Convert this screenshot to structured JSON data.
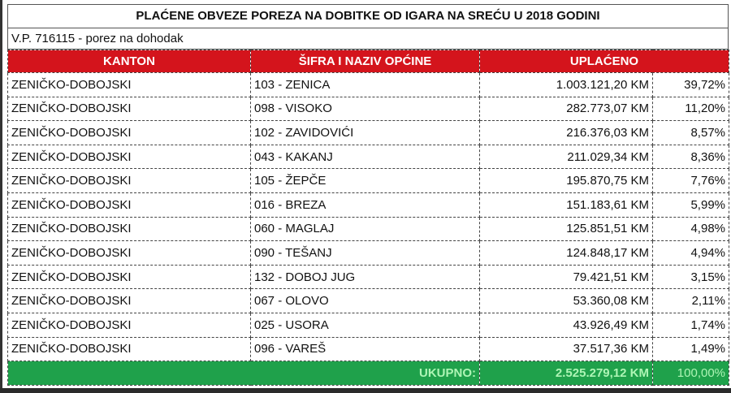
{
  "title": "PLAĆENE OBVEZE POREZA NA DOBITKE OD IGARA NA SREĆU U 2018 GODINI",
  "subtitle": "V.P. 716115 - porez na dohodak",
  "colors": {
    "header": "#d4141c",
    "total": "#1fa14b"
  },
  "headers": [
    "KANTON",
    "ŠIFRA I NAZIV OPĆINE",
    "UPLAĆENO"
  ],
  "rows": [
    {
      "kanton": "ZENIČKO-DOBOJSKI",
      "opcina": "103 - ZENICA",
      "iznos": "1.003.121,20 KM",
      "udio": "39,72%"
    },
    {
      "kanton": "ZENIČKO-DOBOJSKI",
      "opcina": "098 - VISOKO",
      "iznos": "282.773,07 KM",
      "udio": "11,20%"
    },
    {
      "kanton": "ZENIČKO-DOBOJSKI",
      "opcina": "102 - ZAVIDOVIĆI",
      "iznos": "216.376,03 KM",
      "udio": "8,57%"
    },
    {
      "kanton": "ZENIČKO-DOBOJSKI",
      "opcina": "043 - KAKANJ",
      "iznos": "211.029,34 KM",
      "udio": "8,36%"
    },
    {
      "kanton": "ZENIČKO-DOBOJSKI",
      "opcina": "105 - ŽEPČE",
      "iznos": "195.870,75 KM",
      "udio": "7,76%"
    },
    {
      "kanton": "ZENIČKO-DOBOJSKI",
      "opcina": "016 - BREZA",
      "iznos": "151.183,61 KM",
      "udio": "5,99%"
    },
    {
      "kanton": "ZENIČKO-DOBOJSKI",
      "opcina": "060 - MAGLAJ",
      "iznos": "125.851,51 KM",
      "udio": "4,98%"
    },
    {
      "kanton": "ZENIČKO-DOBOJSKI",
      "opcina": "090 - TEŠANJ",
      "iznos": "124.848,17 KM",
      "udio": "4,94%"
    },
    {
      "kanton": "ZENIČKO-DOBOJSKI",
      "opcina": "132 - DOBOJ JUG",
      "iznos": "79.421,51 KM",
      "udio": "3,15%"
    },
    {
      "kanton": "ZENIČKO-DOBOJSKI",
      "opcina": "067 - OLOVO",
      "iznos": "53.360,08 KM",
      "udio": "2,11%"
    },
    {
      "kanton": "ZENIČKO-DOBOJSKI",
      "opcina": "025 - USORA",
      "iznos": "43.926,49 KM",
      "udio": "1,74%"
    },
    {
      "kanton": "ZENIČKO-DOBOJSKI",
      "opcina": "096 - VAREŠ",
      "iznos": "37.517,36 KM",
      "udio": "1,49%"
    }
  ],
  "total": {
    "label": "UKUPNO:",
    "iznos": "2.525.279,12 KM",
    "udio": "100,00%"
  }
}
